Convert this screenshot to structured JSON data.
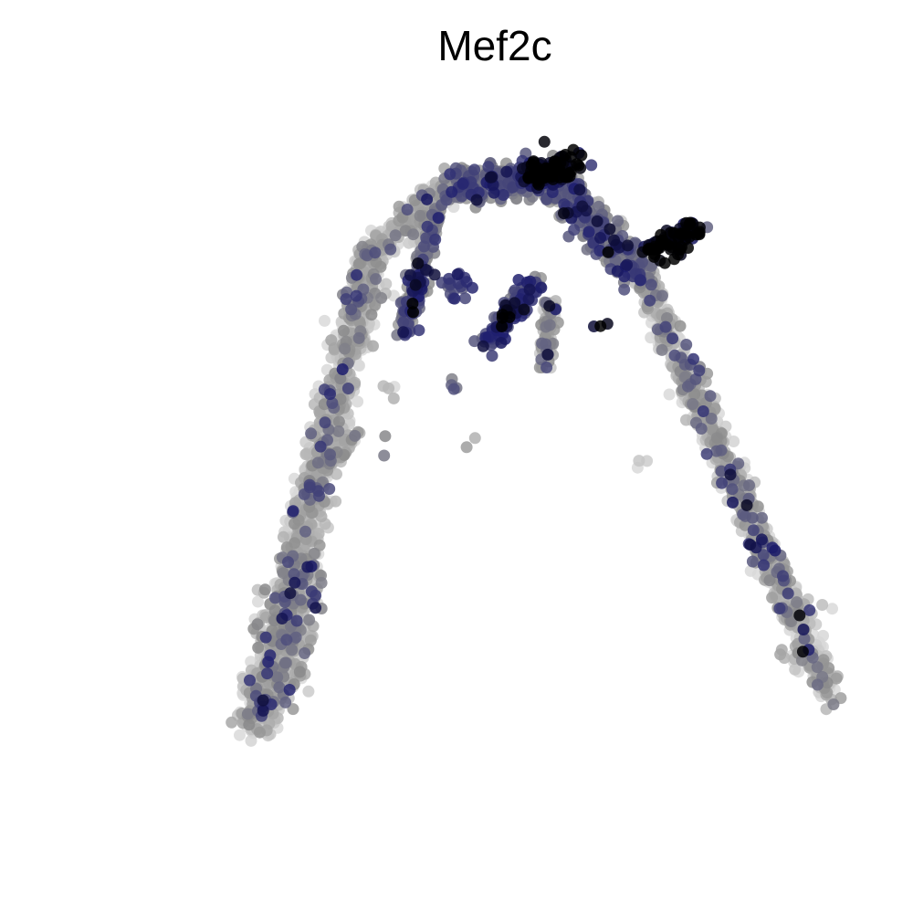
{
  "chart_data": {
    "type": "scatter",
    "title": "Mef2c",
    "xlabel": "",
    "ylabel": "",
    "axes_visible": false,
    "grid": false,
    "legend": "none",
    "xlim": [
      0,
      100
    ],
    "ylim": [
      0,
      100
    ],
    "color_scale": {
      "low": "#d9d9d9",
      "mid": "#8c8c8c",
      "high_mid": "#1c1c6e",
      "high": "#000000"
    },
    "expression_range": [
      0,
      1
    ],
    "structure": [
      {
        "segment": "left_arm",
        "from": [
          20,
          18
        ],
        "to": [
          34,
          76
        ],
        "width": 2.2,
        "expr": 0.08
      },
      {
        "segment": "left_blob",
        "from": [
          21,
          20
        ],
        "to": [
          26,
          38
        ],
        "width": 3.2,
        "expr": 0.1
      },
      {
        "segment": "left_inner_arm",
        "from": [
          26,
          47
        ],
        "to": [
          32,
          54
        ],
        "width": 1.2,
        "expr": 0.08
      },
      {
        "segment": "top_arc_left",
        "from": [
          34,
          76
        ],
        "to": [
          44,
          84
        ],
        "width": 2.0,
        "expr": 0.1
      },
      {
        "segment": "top_arc_mid",
        "from": [
          44,
          84
        ],
        "to": [
          56,
          85
        ],
        "width": 2.5,
        "expr": 0.45
      },
      {
        "segment": "top_peak",
        "from": [
          53,
          85
        ],
        "to": [
          59,
          87
        ],
        "width": 1.8,
        "expr": 0.9
      },
      {
        "segment": "top_arc_right",
        "from": [
          56,
          85
        ],
        "to": [
          67,
          73
        ],
        "width": 2.4,
        "expr": 0.4
      },
      {
        "segment": "right_spike",
        "from": [
          67,
          76
        ],
        "to": [
          74,
          79
        ],
        "width": 1.2,
        "expr": 0.92
      },
      {
        "segment": "right_arm",
        "from": [
          67,
          73
        ],
        "to": [
          90,
          22
        ],
        "width": 1.8,
        "expr": 0.12
      },
      {
        "segment": "inner_loop",
        "from": [
          40,
          73
        ],
        "to": [
          38,
          66
        ],
        "width": 1.2,
        "expr": 0.45
      },
      {
        "segment": "center_branch_a",
        "from": [
          54,
          72
        ],
        "to": [
          48,
          65
        ],
        "width": 1.4,
        "expr": 0.6
      },
      {
        "segment": "center_branch_b",
        "from": [
          56,
          70
        ],
        "to": [
          55,
          62
        ],
        "width": 1.0,
        "expr": 0.2
      },
      {
        "segment": "left_inner_link",
        "from": [
          42,
          81
        ],
        "to": [
          38,
          67
        ],
        "width": 1.0,
        "expr": 0.35
      }
    ],
    "clusters": [
      {
        "x": 44,
        "y": 72,
        "expr": 0.6,
        "n": 18
      },
      {
        "x": 40,
        "y": 74,
        "expr": 0.85,
        "n": 6
      },
      {
        "x": 62,
        "y": 67,
        "expr": 0.95,
        "n": 3
      },
      {
        "x": 37,
        "y": 60,
        "expr": 0.15,
        "n": 4
      },
      {
        "x": 44,
        "y": 59,
        "expr": 0.5,
        "n": 4
      },
      {
        "x": 36,
        "y": 53,
        "expr": 0.3,
        "n": 2
      },
      {
        "x": 47,
        "y": 53,
        "expr": 0.2,
        "n": 2
      },
      {
        "x": 67,
        "y": 51,
        "expr": 0.05,
        "n": 3
      },
      {
        "x": 26,
        "y": 38,
        "expr": 0.85,
        "n": 3
      },
      {
        "x": 27,
        "y": 34,
        "expr": 0.75,
        "n": 3
      },
      {
        "x": 84,
        "y": 26,
        "expr": 0.15,
        "n": 5
      },
      {
        "x": 89,
        "y": 33,
        "expr": 0.05,
        "n": 3
      },
      {
        "x": 71,
        "y": 76,
        "expr": 1.0,
        "n": 10
      },
      {
        "x": 55,
        "y": 86,
        "expr": 1.0,
        "n": 12
      },
      {
        "x": 78,
        "y": 49,
        "expr": 0.85,
        "n": 2
      },
      {
        "x": 80,
        "y": 45,
        "expr": 0.8,
        "n": 2
      },
      {
        "x": 82,
        "y": 40,
        "expr": 0.75,
        "n": 2
      },
      {
        "x": 86,
        "y": 31,
        "expr": 0.8,
        "n": 2
      }
    ]
  }
}
